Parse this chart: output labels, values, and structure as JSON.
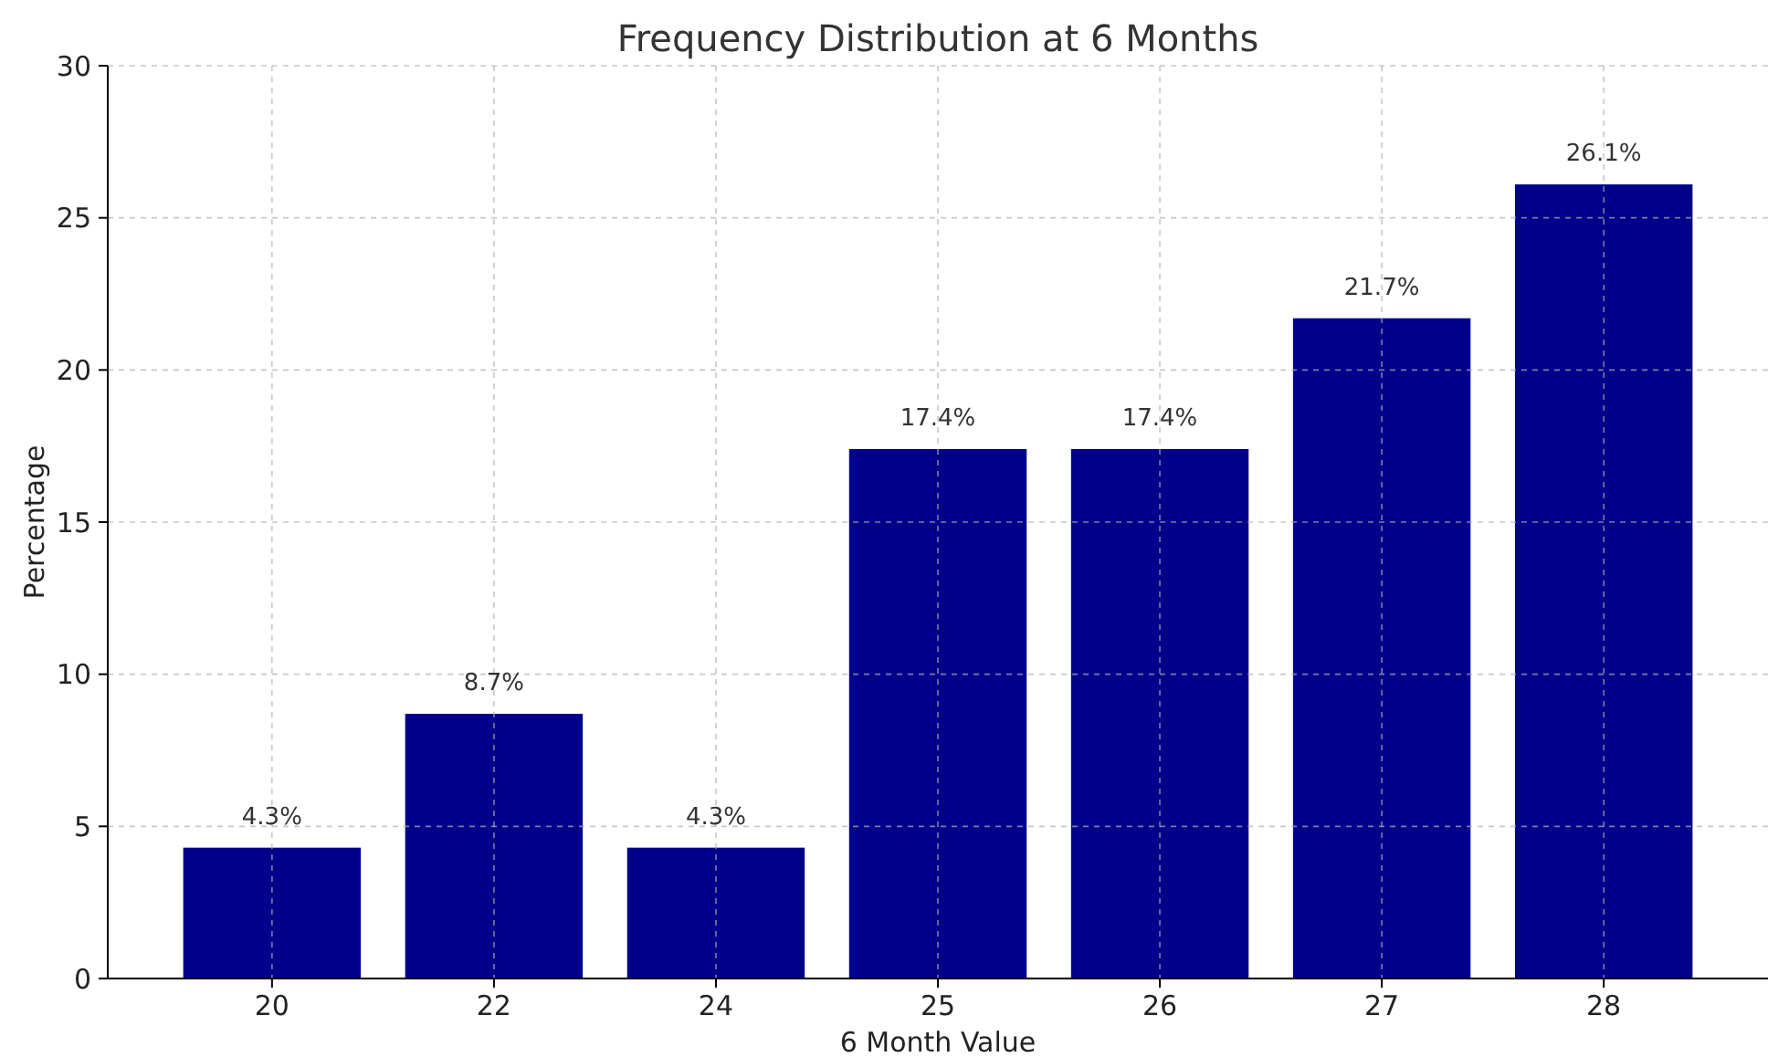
{
  "chart_data": {
    "type": "bar",
    "title": "Frequency Distribution at 6 Months",
    "xlabel": "6 Month Value",
    "ylabel": "Percentage",
    "categories": [
      "20",
      "22",
      "24",
      "25",
      "26",
      "27",
      "28"
    ],
    "values": [
      4.3,
      8.7,
      4.3,
      17.4,
      17.4,
      21.7,
      26.1
    ],
    "value_labels": [
      "4.3%",
      "8.7%",
      "4.3%",
      "17.4%",
      "17.4%",
      "21.7%",
      "26.1%"
    ],
    "color": "#00008b",
    "ylim": [
      0,
      30
    ],
    "yticks": [
      0,
      5,
      10,
      15,
      20,
      25,
      30
    ],
    "grid": true
  }
}
